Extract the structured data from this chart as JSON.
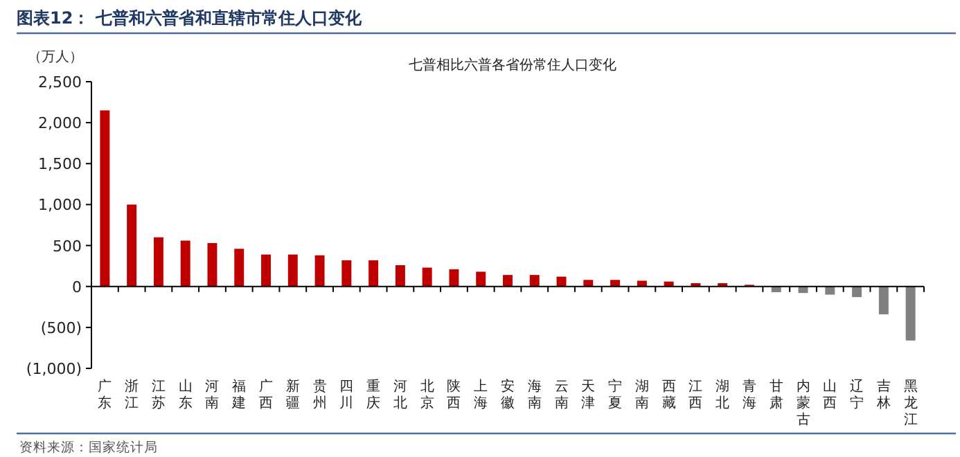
{
  "chart_data": {
    "type": "bar",
    "title": "图表12：  七普和六普省和直辖市常住人口变化",
    "subtitle": "七普相比六普各省份常住人口变化",
    "ylabel": "（万人）",
    "categories": [
      "广东",
      "浙江",
      "江苏",
      "山东",
      "河南",
      "福建",
      "广西",
      "新疆",
      "贵州",
      "四川",
      "重庆",
      "河北",
      "北京",
      "陕西",
      "上海",
      "安徽",
      "海南",
      "云南",
      "天津",
      "宁夏",
      "湖南",
      "西藏",
      "江西",
      "湖北",
      "青海",
      "甘肃",
      "内蒙古",
      "山西",
      "辽宁",
      "吉林",
      "黑龙江"
    ],
    "values": [
      2150,
      1000,
      600,
      560,
      530,
      460,
      390,
      390,
      380,
      320,
      320,
      260,
      230,
      210,
      180,
      140,
      140,
      120,
      80,
      80,
      70,
      60,
      40,
      40,
      20,
      -70,
      -80,
      -100,
      -130,
      -340,
      -660
    ],
    "colors": [
      "#c00000",
      "#c00000",
      "#c00000",
      "#c00000",
      "#c00000",
      "#c00000",
      "#c00000",
      "#c00000",
      "#c00000",
      "#c00000",
      "#c00000",
      "#c00000",
      "#c00000",
      "#c00000",
      "#c00000",
      "#c00000",
      "#c00000",
      "#c00000",
      "#c00000",
      "#c00000",
      "#c00000",
      "#c00000",
      "#c00000",
      "#c00000",
      "#c00000",
      "#808080",
      "#808080",
      "#808080",
      "#808080",
      "#808080",
      "#808080"
    ],
    "ylim": [
      -1000,
      2500
    ],
    "yticks": [
      {
        "value": -1000,
        "label": "(1,000)"
      },
      {
        "value": -500,
        "label": "(500)"
      },
      0,
      500,
      {
        "value": 1000,
        "label": "1,000"
      },
      {
        "value": 1500,
        "label": "1,500"
      },
      {
        "value": 2000,
        "label": "2,000"
      },
      {
        "value": 2500,
        "label": "2,500"
      }
    ],
    "annotations": [
      "资料来源：国家统计局"
    ]
  }
}
